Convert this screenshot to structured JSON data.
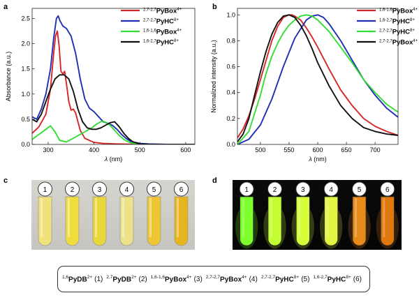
{
  "panel_letters": {
    "a": "a",
    "b": "b",
    "c": "c",
    "d": "d"
  },
  "compounds": [
    {
      "n": "1",
      "sup": "1,6",
      "name": "PyDB",
      "charge": "2+"
    },
    {
      "n": "2",
      "sup": "2,7",
      "name": "PyDB",
      "charge": "2+"
    },
    {
      "n": "3",
      "sup": "1,6-1,6",
      "name": "PyBox",
      "charge": "4+"
    },
    {
      "n": "4",
      "sup": "2,7-2,7",
      "name": "PyBox",
      "charge": "4+"
    },
    {
      "n": "5",
      "sup": "2,7-2,7",
      "name": "PyHC",
      "charge": "8+"
    },
    {
      "n": "6",
      "sup": "1,6-2,7",
      "name": "PyHC",
      "charge": "8+"
    }
  ],
  "vial_labels": [
    "1",
    "2",
    "3",
    "4",
    "5",
    "6"
  ],
  "photo_colors": {
    "c_background": "#c7c5c0",
    "c_liquid": [
      "#f0e17a",
      "#f0dc3c",
      "#e8d63a",
      "#ece28a",
      "#eec632",
      "#e6b41c"
    ],
    "d_background": "#050505",
    "d_liquid": [
      "#7cff2a",
      "#c4ff34",
      "#d6ff3a",
      "#e2f540",
      "#e88a18",
      "#e0780e"
    ]
  },
  "chart_data": [
    {
      "panel": "a",
      "type": "line",
      "xlabel_symbol": "λ",
      "xlabel_unit": " (nm)",
      "ylabel": "Absorbance (a.u.)",
      "xlim": [
        265,
        620
      ],
      "ylim": [
        0,
        2.7
      ],
      "xticks": [
        300,
        400,
        500,
        600
      ],
      "yticks": [
        0.0,
        0.5,
        1.0,
        1.5,
        2.0,
        2.5
      ],
      "ytick_labels": [
        "0.0",
        "0.5",
        "1.0",
        "1.5",
        "2.0",
        "2.5"
      ],
      "legend_position": "top-right",
      "series": [
        {
          "sup": "2,7-2,7",
          "name": "PyBox",
          "charge": "4+",
          "color": "#d62728",
          "x": [
            265,
            280,
            295,
            305,
            312,
            316,
            320,
            324,
            328,
            332,
            336,
            340,
            345,
            350,
            355,
            360,
            365,
            370,
            380,
            400,
            420,
            450,
            500,
            560,
            620
          ],
          "y": [
            0.22,
            0.35,
            0.6,
            1.1,
            1.8,
            2.15,
            2.25,
            1.95,
            1.45,
            1.4,
            1.45,
            1.2,
            0.85,
            0.68,
            0.7,
            0.62,
            0.45,
            0.28,
            0.12,
            0.04,
            0.02,
            0.01,
            0,
            0,
            0
          ]
        },
        {
          "sup": "2,7-2,7",
          "name": "PyHC",
          "charge": "8+",
          "color": "#1f2fb4",
          "x": [
            265,
            275,
            285,
            295,
            305,
            312,
            318,
            322,
            326,
            332,
            340,
            350,
            360,
            370,
            380,
            390,
            400,
            410,
            420,
            430,
            440,
            450,
            460,
            470,
            480,
            500,
            520,
            560,
            620
          ],
          "y": [
            0.55,
            0.5,
            0.7,
            1.0,
            1.5,
            2.1,
            2.5,
            2.55,
            2.45,
            2.35,
            2.3,
            2.15,
            1.8,
            1.3,
            0.9,
            0.72,
            0.65,
            0.55,
            0.45,
            0.42,
            0.38,
            0.3,
            0.2,
            0.12,
            0.06,
            0.02,
            0.01,
            0,
            0
          ]
        },
        {
          "sup": "1,6-1,6",
          "name": "PyBox",
          "charge": "4+",
          "color": "#33dd33",
          "x": [
            265,
            280,
            295,
            305,
            315,
            325,
            340,
            360,
            380,
            395,
            405,
            415,
            420,
            425,
            435,
            445,
            455,
            465,
            475,
            485,
            500,
            520,
            560,
            620
          ],
          "y": [
            0.1,
            0.2,
            0.3,
            0.37,
            0.25,
            0.08,
            0.05,
            0.15,
            0.25,
            0.33,
            0.4,
            0.45,
            0.46,
            0.44,
            0.38,
            0.28,
            0.18,
            0.1,
            0.05,
            0.02,
            0,
            0,
            0,
            0
          ]
        },
        {
          "sup": "1,6-2,7",
          "name": "PyHC",
          "charge": "8+",
          "color": "#111111",
          "x": [
            265,
            275,
            285,
            295,
            305,
            315,
            325,
            335,
            345,
            355,
            365,
            375,
            385,
            395,
            405,
            415,
            425,
            435,
            445,
            455,
            465,
            475,
            485,
            500,
            520,
            560,
            620
          ],
          "y": [
            0.5,
            0.45,
            0.6,
            0.85,
            1.1,
            1.3,
            1.38,
            1.38,
            1.3,
            1.05,
            0.7,
            0.45,
            0.33,
            0.3,
            0.3,
            0.33,
            0.38,
            0.43,
            0.45,
            0.35,
            0.22,
            0.12,
            0.05,
            0.01,
            0,
            0,
            0
          ]
        }
      ]
    },
    {
      "panel": "b",
      "type": "line",
      "xlabel_symbol": "λ",
      "xlabel_unit": " (nm)",
      "ylabel": "Normalized intensity (a.u.)",
      "xlim": [
        460,
        740
      ],
      "ylim": [
        0,
        1.05
      ],
      "xticks": [
        500,
        550,
        600,
        650,
        700
      ],
      "yticks": [
        0.0,
        0.2,
        0.4,
        0.6,
        0.8,
        1.0
      ],
      "ytick_labels": [
        "0.0",
        "0.2",
        "0.4",
        "0.6",
        "0.8",
        "1.0"
      ],
      "legend_position": "top-right",
      "series": [
        {
          "sup": "1,6-1,6",
          "name": "PyBox",
          "charge": "4+",
          "color": "#d62728",
          "x": [
            460,
            470,
            480,
            490,
            500,
            510,
            520,
            530,
            540,
            550,
            555,
            560,
            570,
            580,
            590,
            600,
            620,
            640,
            660,
            680,
            700,
            720,
            740
          ],
          "y": [
            0.05,
            0.12,
            0.22,
            0.35,
            0.5,
            0.65,
            0.8,
            0.91,
            0.98,
            1.0,
            1.0,
            0.99,
            0.96,
            0.9,
            0.83,
            0.75,
            0.58,
            0.42,
            0.3,
            0.2,
            0.14,
            0.1,
            0.07
          ]
        },
        {
          "sup": "1,6-2,7",
          "name": "PyHC",
          "charge": "8+",
          "color": "#1f2fb4",
          "x": [
            460,
            480,
            500,
            520,
            540,
            560,
            580,
            590,
            600,
            610,
            620,
            640,
            660,
            680,
            700,
            720,
            740
          ],
          "y": [
            0.0,
            0.04,
            0.15,
            0.35,
            0.6,
            0.82,
            0.96,
            0.99,
            1.0,
            0.98,
            0.93,
            0.8,
            0.65,
            0.5,
            0.38,
            0.28,
            0.21
          ]
        },
        {
          "sup": "2,7-2,7",
          "name": "PyHC",
          "charge": "8+",
          "color": "#33dd33",
          "x": [
            460,
            480,
            500,
            510,
            520,
            530,
            540,
            550,
            560,
            570,
            580,
            590,
            600,
            620,
            640,
            660,
            680,
            700,
            720,
            740
          ],
          "y": [
            0.0,
            0.1,
            0.38,
            0.55,
            0.68,
            0.78,
            0.86,
            0.92,
            0.96,
            0.99,
            1.0,
            0.99,
            0.96,
            0.87,
            0.75,
            0.63,
            0.5,
            0.4,
            0.31,
            0.25
          ]
        },
        {
          "sup": "2,7-2,7",
          "name": "PyBox",
          "charge": "4+",
          "color": "#111111",
          "x": [
            460,
            470,
            480,
            490,
            500,
            510,
            520,
            530,
            540,
            550,
            560,
            570,
            580,
            590,
            600,
            620,
            640,
            660,
            680,
            700,
            720,
            740
          ],
          "y": [
            0.02,
            0.08,
            0.2,
            0.38,
            0.56,
            0.72,
            0.85,
            0.94,
            0.99,
            1.0,
            0.98,
            0.92,
            0.84,
            0.74,
            0.63,
            0.45,
            0.3,
            0.2,
            0.13,
            0.1,
            0.08,
            0.07
          ]
        }
      ]
    }
  ]
}
